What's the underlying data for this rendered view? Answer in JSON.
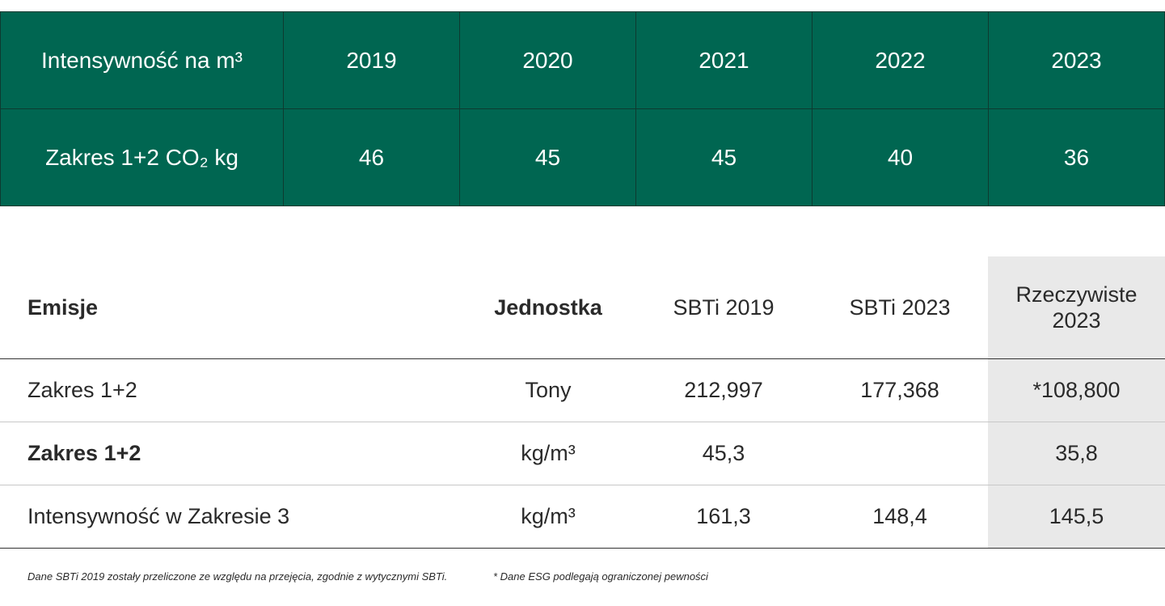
{
  "intensity_table": {
    "header": [
      "Intensywność na m³",
      "2019",
      "2020",
      "2021",
      "2022",
      "2023"
    ],
    "row": [
      "Zakres 1+2 CO₂ kg",
      "46",
      "45",
      "45",
      "40",
      "36"
    ],
    "colors": {
      "background": "#006651",
      "text": "#ffffff",
      "border": "#0e3a30"
    }
  },
  "emissions_table": {
    "headers": [
      "Emisje",
      "Jednostka",
      "SBTi 2019",
      "SBTi 2023",
      "Rzeczywiste 2023"
    ],
    "rows": [
      [
        "Zakres 1+2",
        "Tony",
        "212,997",
        "177,368",
        "*108,800"
      ],
      [
        "Zakres 1+2",
        "kg/m³",
        "45,3",
        "",
        "35,8"
      ],
      [
        "Intensywność w Zakresie 3",
        "kg/m³",
        "161,3",
        "148,4",
        "145,5"
      ]
    ],
    "colors": {
      "highlight_column": "#e9e9e9"
    }
  },
  "footnotes": [
    "Dane SBTi 2019 zostały przeliczone ze względu na przejęcia, zgodnie z wytycznymi SBTi.",
    "* Dane ESG podlegają ograniczonej pewności"
  ]
}
